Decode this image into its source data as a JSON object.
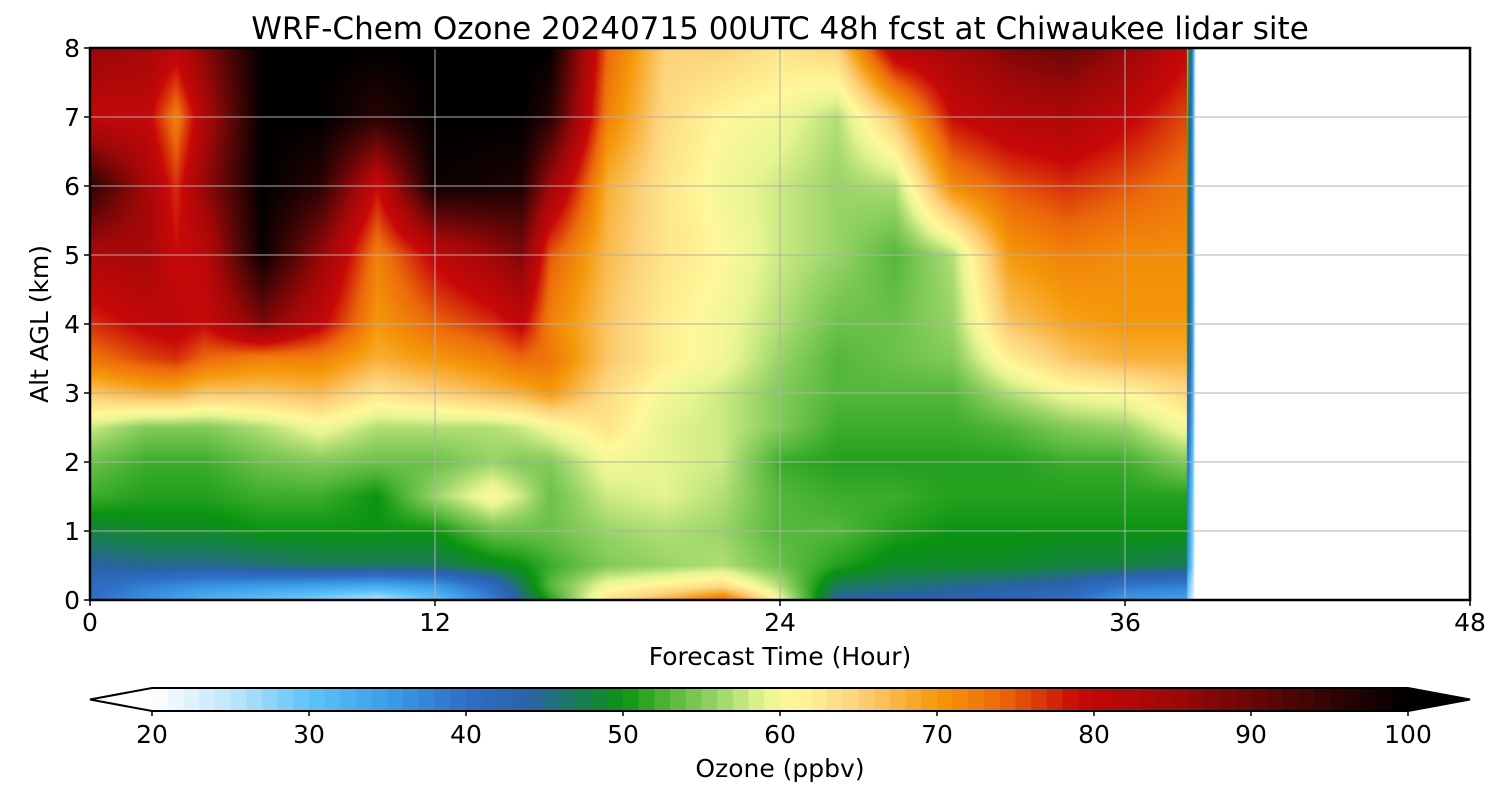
{
  "chart_data": {
    "type": "heatmap",
    "title": "WRF-Chem Ozone  20240715 00UTC 48h fcst at Chiwaukee lidar site",
    "xlabel": "Forecast Time (Hour)",
    "ylabel": "Alt AGL (km)",
    "xlim": [
      0,
      48
    ],
    "ylim": [
      0,
      8
    ],
    "x_ticks": [
      "0",
      "12",
      "24",
      "36",
      "48"
    ],
    "y_ticks": [
      "0",
      "1",
      "2",
      "3",
      "4",
      "5",
      "6",
      "7",
      "8"
    ],
    "grid": true,
    "data_end_hour": 38.5,
    "colorbar": {
      "label": "Ozone  (ppbv)",
      "min": 20,
      "max": 100,
      "ticks": [
        "20",
        "30",
        "40",
        "50",
        "60",
        "70",
        "80",
        "90",
        "100"
      ],
      "extend": "both",
      "orientation": "horizontal",
      "stops": [
        {
          "v": 20,
          "c": "#ffffff"
        },
        {
          "v": 25,
          "c": "#bfe6fa"
        },
        {
          "v": 30,
          "c": "#5ec4f8"
        },
        {
          "v": 35,
          "c": "#3a9ee8"
        },
        {
          "v": 40,
          "c": "#2e6fc6"
        },
        {
          "v": 44,
          "c": "#2a62a8"
        },
        {
          "v": 47,
          "c": "#1a7a5a"
        },
        {
          "v": 50,
          "c": "#0a9410"
        },
        {
          "v": 53,
          "c": "#55b83a"
        },
        {
          "v": 56,
          "c": "#98d468"
        },
        {
          "v": 59,
          "c": "#e6f590"
        },
        {
          "v": 61,
          "c": "#fff89a"
        },
        {
          "v": 65,
          "c": "#fcd27a"
        },
        {
          "v": 70,
          "c": "#f5980a"
        },
        {
          "v": 74,
          "c": "#ec6a0a"
        },
        {
          "v": 79,
          "c": "#c80808"
        },
        {
          "v": 85,
          "c": "#a00808"
        },
        {
          "v": 92,
          "c": "#520606"
        },
        {
          "v": 100,
          "c": "#000000"
        }
      ]
    },
    "z_grid": {
      "hours": [
        0,
        2,
        3,
        4,
        6,
        8,
        10,
        12,
        14,
        15,
        16,
        18,
        20,
        22,
        24,
        26,
        28,
        30,
        32,
        34,
        36,
        38
      ],
      "altitudes_km": [
        0,
        0.2,
        0.5,
        1,
        1.5,
        2,
        2.5,
        3,
        3.5,
        4,
        5,
        6,
        7,
        8
      ],
      "values_ppbv": [
        [
          40,
          41,
          44,
          48,
          52,
          54,
          58,
          66,
          73,
          77,
          83,
          96,
          80,
          86
        ],
        [
          36,
          38,
          45,
          49,
          51,
          52,
          55,
          68,
          76,
          80,
          84,
          84,
          80,
          84
        ],
        [
          34,
          37,
          45,
          49,
          51,
          52,
          55,
          68,
          77,
          81,
          79,
          77,
          72,
          81
        ],
        [
          32,
          36,
          45,
          49,
          51,
          52,
          55,
          66,
          74,
          79,
          81,
          86,
          83,
          87
        ],
        [
          30,
          35,
          46,
          50,
          52,
          54,
          57,
          66,
          72,
          88,
          99,
          100,
          100,
          100
        ],
        [
          28,
          34,
          47,
          50,
          52,
          55,
          60,
          67,
          72,
          80,
          86,
          96,
          100,
          100
        ],
        [
          25,
          33,
          47,
          50,
          50,
          54,
          57,
          63,
          68,
          70,
          72,
          79,
          96,
          100
        ],
        [
          30,
          35,
          47,
          50,
          56,
          54,
          57,
          65,
          70,
          74,
          80,
          99,
          100,
          100
        ],
        [
          38,
          41,
          49,
          54,
          61,
          56,
          57,
          67,
          72,
          77,
          85,
          98,
          100,
          100
        ],
        [
          45,
          47,
          50,
          54,
          58,
          55,
          58,
          68,
          74,
          80,
          88,
          97,
          100,
          100
        ],
        [
          51,
          53,
          52,
          54,
          54,
          55,
          60,
          70,
          73,
          72,
          75,
          85,
          96,
          100
        ],
        [
          63,
          60,
          55,
          56,
          58,
          60,
          63,
          64,
          66,
          66,
          67,
          68,
          72,
          74
        ],
        [
          68,
          62,
          56,
          57,
          59,
          59,
          59,
          60,
          62,
          62,
          63,
          63,
          64,
          65
        ],
        [
          74,
          64,
          57,
          56,
          57,
          58,
          58,
          58,
          60,
          60,
          61,
          60,
          61,
          65
        ],
        [
          60,
          57,
          54,
          53,
          53,
          52,
          55,
          55,
          56,
          57,
          58,
          58,
          60,
          63
        ],
        [
          44,
          47,
          51,
          53,
          52,
          51,
          52,
          53,
          53,
          54,
          56,
          56,
          57,
          65
        ],
        [
          43,
          46,
          49,
          51,
          52,
          51,
          52,
          53,
          54,
          54,
          53,
          57,
          66,
          82
        ],
        [
          43,
          45,
          49,
          50,
          51,
          51,
          52,
          53,
          55,
          56,
          57,
          71,
          79,
          84
        ],
        [
          42,
          44,
          49,
          50,
          51,
          51,
          53,
          57,
          62,
          66,
          70,
          75,
          82,
          88
        ],
        [
          40,
          43,
          48,
          50,
          51,
          52,
          55,
          60,
          66,
          69,
          72,
          77,
          83,
          90
        ],
        [
          35,
          39,
          48,
          50,
          51,
          52,
          56,
          61,
          68,
          70,
          71,
          75,
          80,
          86
        ],
        [
          34,
          38,
          47,
          50,
          51,
          55,
          60,
          64,
          68,
          70,
          71,
          73,
          76,
          80
        ]
      ]
    }
  }
}
